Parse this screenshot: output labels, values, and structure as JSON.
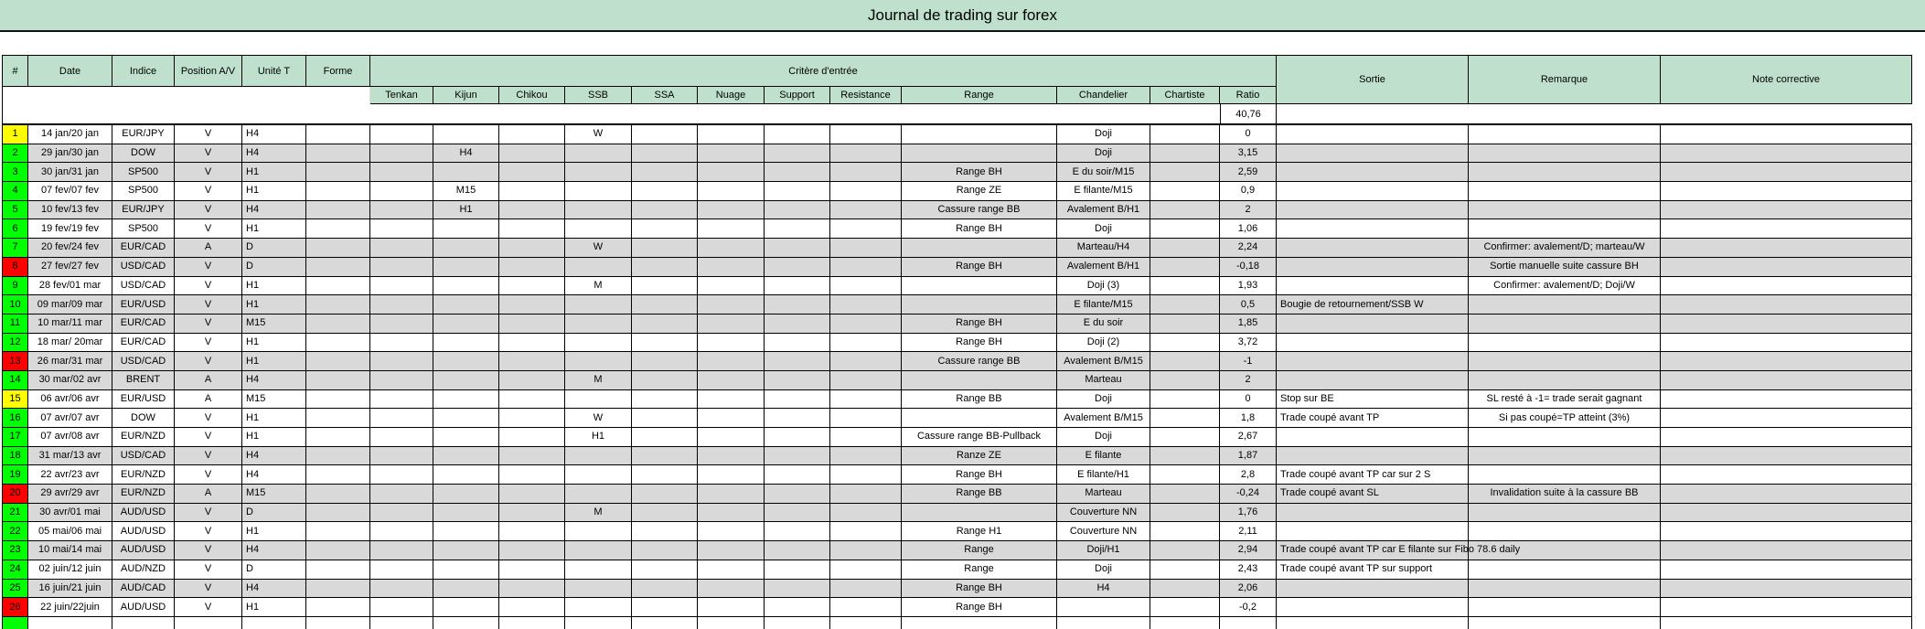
{
  "title": "Journal de trading sur forex",
  "colors": {
    "header_green": "#bfe0cd",
    "stripe_gray": "#d9d9d9",
    "num_yellow": "#ffff00",
    "num_green": "#00ff00",
    "num_red": "#ff0000"
  },
  "table": {
    "top_headers": {
      "num": "#",
      "date": "Date",
      "indice": "Indice",
      "position": "Position A/V",
      "unite": "Unité T",
      "forme": "Forme",
      "critere": "Critère d'entrée",
      "sortie": "Sortie",
      "remarque": "Remarque",
      "note": "Note corrective"
    },
    "sub_headers": [
      "Tenkan",
      "Kijun",
      "Chikou",
      "SSB",
      "SSA",
      "Nuage",
      "Support",
      "Resistance",
      "Range",
      "Chandelier",
      "Chartiste",
      "Ratio"
    ],
    "ratio_total": "40,76",
    "rows": [
      {
        "num_color": "yellow",
        "stripe": "white",
        "cells": [
          "1",
          "14 jan/20 jan",
          "EUR/JPY",
          "V",
          "H4",
          "",
          "",
          "",
          "",
          "W",
          "",
          "",
          "",
          "",
          "",
          "Doji",
          "",
          "0",
          "",
          "",
          ""
        ]
      },
      {
        "num_color": "green",
        "stripe": "gray",
        "cells": [
          "2",
          "29 jan/30 jan",
          "DOW",
          "V",
          "H4",
          "",
          "",
          "H4",
          "",
          "",
          "",
          "",
          "",
          "",
          "",
          "Doji",
          "",
          "3,15",
          "",
          "",
          ""
        ]
      },
      {
        "num_color": "green",
        "stripe": "gray",
        "cells": [
          "3",
          "30 jan/31 jan",
          "SP500",
          "V",
          "H1",
          "",
          "",
          "",
          "",
          "",
          "",
          "",
          "",
          "",
          "Range BH",
          "E du soir/M15",
          "",
          "2,59",
          "",
          "",
          ""
        ]
      },
      {
        "num_color": "green",
        "stripe": "white",
        "cells": [
          "4",
          "07 fev/07 fev",
          "SP500",
          "V",
          "H1",
          "",
          "",
          "M15",
          "",
          "",
          "",
          "",
          "",
          "",
          "Range ZE",
          "E filante/M15",
          "",
          "0,9",
          "",
          "",
          ""
        ]
      },
      {
        "num_color": "green",
        "stripe": "gray",
        "cells": [
          "5",
          "10 fev/13 fev",
          "EUR/JPY",
          "V",
          "H4",
          "",
          "",
          "H1",
          "",
          "",
          "",
          "",
          "",
          "",
          "Cassure range BB",
          "Avalement B/H1",
          "",
          "2",
          "",
          "",
          ""
        ]
      },
      {
        "num_color": "green",
        "stripe": "white",
        "cells": [
          "6",
          "19 fev/19 fev",
          "SP500",
          "V",
          "H1",
          "",
          "",
          "",
          "",
          "",
          "",
          "",
          "",
          "",
          "Range BH",
          "Doji",
          "",
          "1,06",
          "",
          "",
          ""
        ]
      },
      {
        "num_color": "green",
        "stripe": "gray",
        "cells": [
          "7",
          "20 fev/24 fev",
          "EUR/CAD",
          "A",
          "D",
          "",
          "",
          "",
          "",
          "W",
          "",
          "",
          "",
          "",
          "",
          "Marteau/H4",
          "",
          "2,24",
          "",
          "Confirmer: avalement/D; marteau/W",
          ""
        ]
      },
      {
        "num_color": "red",
        "stripe": "gray",
        "cells": [
          "8",
          "27 fev/27 fev",
          "USD/CAD",
          "V",
          "D",
          "",
          "",
          "",
          "",
          "",
          "",
          "",
          "",
          "",
          "Range BH",
          "Avalement B/H1",
          "",
          "-0,18",
          "",
          "Sortie manuelle suite cassure BH",
          ""
        ]
      },
      {
        "num_color": "green",
        "stripe": "white",
        "cells": [
          "9",
          "28 fev/01 mar",
          "USD/CAD",
          "V",
          "H1",
          "",
          "",
          "",
          "",
          "M",
          "",
          "",
          "",
          "",
          "",
          "Doji (3)",
          "",
          "1,93",
          "",
          "Confirmer: avalement/D; Doji/W",
          ""
        ]
      },
      {
        "num_color": "green",
        "stripe": "gray",
        "cells": [
          "10",
          "09 mar/09 mar",
          "EUR/USD",
          "V",
          "H1",
          "",
          "",
          "",
          "",
          "",
          "",
          "",
          "",
          "",
          "",
          "E filante/M15",
          "",
          "0,5",
          "Bougie de retournement/SSB W",
          "",
          ""
        ]
      },
      {
        "num_color": "green",
        "stripe": "gray",
        "cells": [
          "11",
          "10 mar/11 mar",
          "EUR/CAD",
          "V",
          "M15",
          "",
          "",
          "",
          "",
          "",
          "",
          "",
          "",
          "",
          "Range BH",
          "E du soir",
          "",
          "1,85",
          "",
          "",
          ""
        ]
      },
      {
        "num_color": "green",
        "stripe": "white",
        "cells": [
          "12",
          "18 mar/ 20mar",
          "EUR/CAD",
          "V",
          "H1",
          "",
          "",
          "",
          "",
          "",
          "",
          "",
          "",
          "",
          "Range BH",
          "Doji (2)",
          "",
          "3,72",
          "",
          "",
          ""
        ]
      },
      {
        "num_color": "red",
        "stripe": "gray",
        "cells": [
          "13",
          "26 mar/31 mar",
          "USD/CAD",
          "V",
          "H1",
          "",
          "",
          "",
          "",
          "",
          "",
          "",
          "",
          "",
          "Cassure range BB",
          "Avalement B/M15",
          "",
          "-1",
          "",
          "",
          ""
        ]
      },
      {
        "num_color": "green",
        "stripe": "gray",
        "cells": [
          "14",
          "30 mar/02 avr",
          "BRENT",
          "A",
          "H4",
          "",
          "",
          "",
          "",
          "M",
          "",
          "",
          "",
          "",
          "",
          "Marteau",
          "",
          "2",
          "",
          "",
          ""
        ]
      },
      {
        "num_color": "yellow",
        "stripe": "white",
        "cells": [
          "15",
          "06 avr/06 avr",
          "EUR/USD",
          "A",
          "M15",
          "",
          "",
          "",
          "",
          "",
          "",
          "",
          "",
          "",
          "Range BB",
          "Doji",
          "",
          "0",
          "Stop sur BE",
          "SL resté à -1= trade serait gagnant",
          ""
        ]
      },
      {
        "num_color": "green",
        "stripe": "white",
        "cells": [
          "16",
          "07 avr/07 avr",
          "DOW",
          "V",
          "H1",
          "",
          "",
          "",
          "",
          "W",
          "",
          "",
          "",
          "",
          "",
          "Avalement B/M15",
          "",
          "1,8",
          "Trade coupé avant TP",
          "Si pas coupé=TP atteint (3%)",
          ""
        ]
      },
      {
        "num_color": "green",
        "stripe": "white",
        "cells": [
          "17",
          "07 avr/08 avr",
          "EUR/NZD",
          "V",
          "H1",
          "",
          "",
          "",
          "",
          "H1",
          "",
          "",
          "",
          "",
          "Cassure range BB-Pullback",
          "Doji",
          "",
          "2,67",
          "",
          "",
          ""
        ]
      },
      {
        "num_color": "green",
        "stripe": "gray",
        "cells": [
          "18",
          "31 mar/13 avr",
          "USD/CAD",
          "V",
          "H4",
          "",
          "",
          "",
          "",
          "",
          "",
          "",
          "",
          "",
          "Ranze ZE",
          "E filante",
          "",
          "1,87",
          "",
          "",
          ""
        ]
      },
      {
        "num_color": "green",
        "stripe": "white",
        "cells": [
          "19",
          "22 avr/23 avr",
          "EUR/NZD",
          "V",
          "H4",
          "",
          "",
          "",
          "",
          "",
          "",
          "",
          "",
          "",
          "Range BH",
          "E filante/H1",
          "",
          "2,8",
          "Trade coupé avant TP car sur 2 S",
          "",
          ""
        ]
      },
      {
        "num_color": "red",
        "stripe": "gray",
        "cells": [
          "20",
          "29 avr/29 avr",
          "EUR/NZD",
          "A",
          "M15",
          "",
          "",
          "",
          "",
          "",
          "",
          "",
          "",
          "",
          "Range BB",
          "Marteau",
          "",
          "-0,24",
          "Trade coupé avant SL",
          "Invalidation suite à la cassure BB",
          ""
        ]
      },
      {
        "num_color": "green",
        "stripe": "gray",
        "cells": [
          "21",
          "30 avr/01 mai",
          "AUD/USD",
          "V",
          "D",
          "",
          "",
          "",
          "",
          "M",
          "",
          "",
          "",
          "",
          "",
          "Couverture NN",
          "",
          "1,76",
          "",
          "",
          ""
        ]
      },
      {
        "num_color": "green",
        "stripe": "white",
        "cells": [
          "22",
          "05 mai/06 mai",
          "AUD/USD",
          "V",
          "H1",
          "",
          "",
          "",
          "",
          "",
          "",
          "",
          "",
          "",
          "Range H1",
          "Couverture NN",
          "",
          "2,11",
          "",
          "",
          ""
        ]
      },
      {
        "num_color": "green",
        "stripe": "gray",
        "cells": [
          "23",
          "10 mai/14 mai",
          "AUD/USD",
          "V",
          "H4",
          "",
          "",
          "",
          "",
          "",
          "",
          "",
          "",
          "",
          "Range",
          "Doji/H1",
          "",
          "2,94",
          "Trade coupé avant TP car E filante sur Fibo 78.6 daily",
          "",
          ""
        ]
      },
      {
        "num_color": "green",
        "stripe": "white",
        "cells": [
          "24",
          "02 juin/12 juin",
          "AUD/NZD",
          "V",
          "D",
          "",
          "",
          "",
          "",
          "",
          "",
          "",
          "",
          "",
          "Range",
          "Doji",
          "",
          "2,43",
          "Trade coupé avant TP sur support",
          "",
          ""
        ]
      },
      {
        "num_color": "green",
        "stripe": "gray",
        "cells": [
          "25",
          "16 juin/21 juin",
          "AUD/CAD",
          "V",
          "H4",
          "",
          "",
          "",
          "",
          "",
          "",
          "",
          "",
          "",
          "Range BH",
          "H4",
          "",
          "2,06",
          "",
          "",
          ""
        ]
      },
      {
        "num_color": "red",
        "stripe": "white",
        "cells": [
          "26",
          "22 juin/22juin",
          "AUD/USD",
          "V",
          "H1",
          "",
          "",
          "",
          "",
          "",
          "",
          "",
          "",
          "",
          "Range BH",
          "",
          "",
          "-0,2",
          "",
          "",
          ""
        ]
      }
    ],
    "partial_row": {
      "num_color": "green"
    }
  }
}
